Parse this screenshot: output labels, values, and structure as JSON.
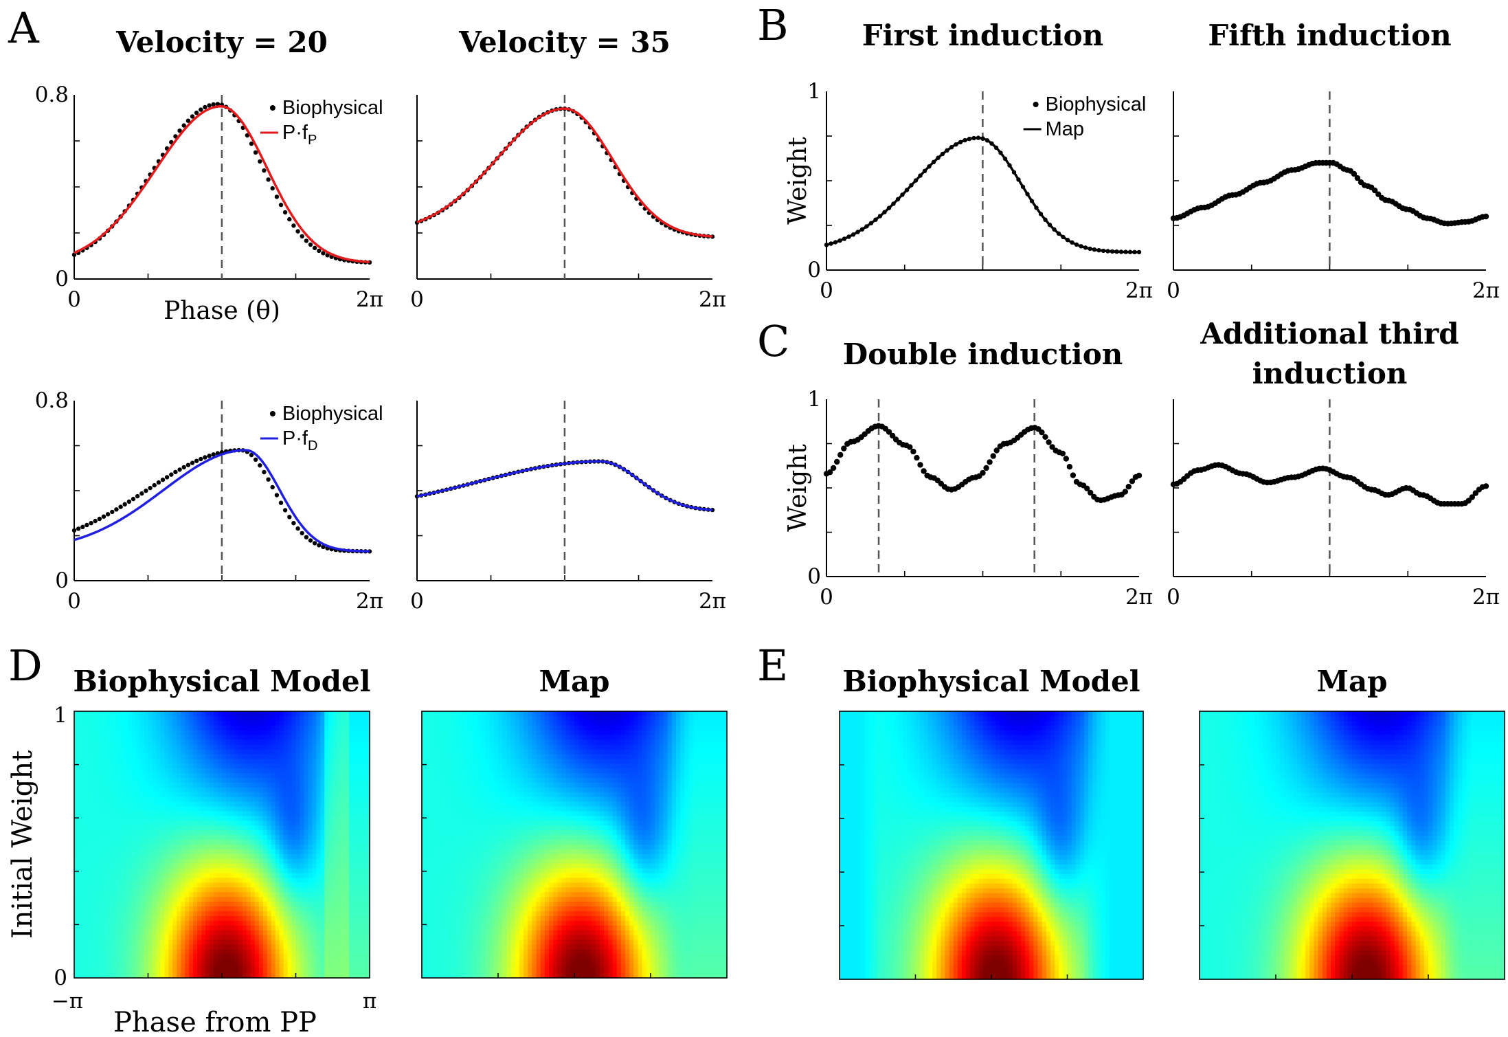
{
  "panel_labels": [
    "A",
    "B",
    "C",
    "D",
    "E"
  ],
  "colors": {
    "axis": "#000000",
    "biophysical": "#000000",
    "red_fit": "#e31a1c",
    "blue_fit": "#1f1fe0",
    "vline": "#555555"
  },
  "chart_data": [
    {
      "id": "A1",
      "type": "scatter",
      "title": "Velocity = 20",
      "xlabel": "Phase (θ)",
      "ylabel": "",
      "xticklabels": [
        "0",
        "2π"
      ],
      "yticklabels": [
        "0",
        "0.8"
      ],
      "xlim": [
        0,
        6.283
      ],
      "ylim": [
        0,
        0.8
      ],
      "vline": 3.14,
      "series": [
        {
          "name": "Biophysical",
          "style": "dots",
          "color": "#000000",
          "peak_x": 3.05,
          "peak_y": 0.76,
          "base": 0.05,
          "base_end": 0.07,
          "width_left": 1.35,
          "width_right": 0.95
        },
        {
          "name": "P·f",
          "name_sub": "P",
          "style": "line",
          "color": "#e31a1c",
          "peak_x": 3.12,
          "peak_y": 0.75,
          "base": 0.06,
          "base_end": 0.07,
          "width_left": 1.38,
          "width_right": 0.98
        }
      ]
    },
    {
      "id": "A2",
      "type": "scatter",
      "title": "Velocity = 35",
      "xticklabels": [
        "0",
        "2π"
      ],
      "yticklabels": [],
      "xlim": [
        0,
        6.283
      ],
      "ylim": [
        0,
        0.8
      ],
      "vline": 3.14,
      "series": [
        {
          "name": "",
          "style": "dots",
          "color": "#000000",
          "peak_x": 3.12,
          "peak_y": 0.74,
          "base": 0.2,
          "base_end": 0.18,
          "width_left": 1.4,
          "width_right": 1.0
        },
        {
          "name": "",
          "style": "line",
          "color": "#e31a1c",
          "peak_x": 3.14,
          "peak_y": 0.74,
          "base": 0.2,
          "base_end": 0.18,
          "width_left": 1.42,
          "width_right": 1.02
        }
      ]
    },
    {
      "id": "A3",
      "type": "scatter",
      "title": "",
      "xticklabels": [
        "0",
        "2π"
      ],
      "yticklabels": [
        "0",
        "0.8"
      ],
      "xlim": [
        0,
        6.283
      ],
      "ylim": [
        0,
        0.8
      ],
      "vline": 3.14,
      "series": [
        {
          "name": "Biophysical",
          "style": "dots",
          "color": "#000000",
          "peak_x": 3.55,
          "peak_y": 0.58,
          "base": 0.13,
          "base_end": 0.13,
          "width_left": 2.0,
          "width_right": 0.7
        },
        {
          "name": "P·f",
          "name_sub": "D",
          "style": "line",
          "color": "#1f1fe0",
          "peak_x": 3.65,
          "peak_y": 0.58,
          "base": 0.13,
          "base_end": 0.13,
          "width_left": 1.75,
          "width_right": 0.72
        }
      ]
    },
    {
      "id": "A4",
      "type": "scatter",
      "title": "",
      "xticklabels": [
        "0",
        "2π"
      ],
      "yticklabels": [],
      "xlim": [
        0,
        6.283
      ],
      "ylim": [
        0,
        0.8
      ],
      "vline": 3.14,
      "series": [
        {
          "name": "",
          "style": "dots",
          "color": "#000000",
          "peak_x": 3.9,
          "peak_y": 0.53,
          "base": 0.3,
          "base_end": 0.31,
          "width_left": 2.6,
          "width_right": 0.85
        },
        {
          "name": "",
          "style": "line",
          "color": "#1f1fe0",
          "peak_x": 3.9,
          "peak_y": 0.53,
          "base": 0.3,
          "base_end": 0.31,
          "width_left": 2.6,
          "width_right": 0.85
        }
      ]
    },
    {
      "id": "B1",
      "type": "scatter",
      "title": "First induction",
      "ylabel": "Weight",
      "xticklabels": [
        "0",
        "2π"
      ],
      "yticklabels": [
        "0",
        "1"
      ],
      "xlim": [
        0,
        6.283
      ],
      "ylim": [
        0,
        1
      ],
      "vline": 3.14,
      "series": [
        {
          "name": "Biophysical",
          "style": "dots",
          "color": "#000000",
          "peak_x": 3.05,
          "peak_y": 0.74,
          "base": 0.1,
          "base_end": 0.1,
          "width_left": 1.3,
          "width_right": 0.85
        },
        {
          "name": "Map",
          "style": "line",
          "color": "#000000",
          "peak_x": 3.05,
          "peak_y": 0.74,
          "base": 0.1,
          "base_end": 0.1,
          "width_left": 1.3,
          "width_right": 0.85
        }
      ]
    },
    {
      "id": "B2",
      "type": "scatter",
      "title": "Fifth induction",
      "xticklabels": [
        "0",
        "2π"
      ],
      "yticklabels": [],
      "xlim": [
        0,
        6.283
      ],
      "ylim": [
        0,
        1
      ],
      "vline": 3.14,
      "series": [
        {
          "name": "",
          "style": "dots",
          "color": "#000000",
          "points": [
            [
              0,
              0.29
            ],
            [
              0.6,
              0.35
            ],
            [
              1.2,
              0.42
            ],
            [
              1.8,
              0.49
            ],
            [
              2.4,
              0.56
            ],
            [
              2.9,
              0.6
            ],
            [
              3.2,
              0.6
            ],
            [
              3.5,
              0.56
            ],
            [
              3.9,
              0.47
            ],
            [
              4.3,
              0.39
            ],
            [
              4.7,
              0.34
            ],
            [
              5.1,
              0.29
            ],
            [
              5.5,
              0.26
            ],
            [
              5.9,
              0.27
            ],
            [
              6.283,
              0.3
            ]
          ]
        }
      ]
    },
    {
      "id": "C1",
      "type": "scatter",
      "title": "Double induction",
      "ylabel": "Weight",
      "xticklabels": [
        "0",
        "2π"
      ],
      "yticklabels": [
        "0",
        "1"
      ],
      "xlim": [
        0,
        6.283
      ],
      "ylim": [
        0,
        1
      ],
      "vlines": [
        1.05,
        4.18
      ],
      "series": [
        {
          "name": "",
          "style": "dots",
          "color": "#000000",
          "points": [
            [
              0,
              0.58
            ],
            [
              0.5,
              0.76
            ],
            [
              1.05,
              0.85
            ],
            [
              1.6,
              0.74
            ],
            [
              2.1,
              0.56
            ],
            [
              2.5,
              0.49
            ],
            [
              3.0,
              0.56
            ],
            [
              3.6,
              0.75
            ],
            [
              4.18,
              0.84
            ],
            [
              4.7,
              0.7
            ],
            [
              5.1,
              0.52
            ],
            [
              5.5,
              0.43
            ],
            [
              5.9,
              0.46
            ],
            [
              6.283,
              0.57
            ]
          ]
        }
      ]
    },
    {
      "id": "C2",
      "type": "scatter",
      "title": "Additional third induction",
      "xticklabels": [
        "0",
        "2π"
      ],
      "yticklabels": [],
      "xlim": [
        0,
        6.283
      ],
      "ylim": [
        0,
        1
      ],
      "vline": 3.14,
      "series": [
        {
          "name": "",
          "style": "dots",
          "color": "#000000",
          "points": [
            [
              0,
              0.52
            ],
            [
              0.5,
              0.6
            ],
            [
              0.9,
              0.63
            ],
            [
              1.4,
              0.58
            ],
            [
              1.9,
              0.53
            ],
            [
              2.4,
              0.56
            ],
            [
              3.0,
              0.61
            ],
            [
              3.5,
              0.56
            ],
            [
              4.0,
              0.49
            ],
            [
              4.3,
              0.46
            ],
            [
              4.7,
              0.5
            ],
            [
              5.0,
              0.46
            ],
            [
              5.4,
              0.41
            ],
            [
              5.8,
              0.41
            ],
            [
              6.283,
              0.51
            ]
          ]
        }
      ]
    },
    {
      "id": "D1",
      "type": "heatmap",
      "title": "Biophysical Model",
      "xlabel": "Phase from PP",
      "ylabel": "Initial Weight",
      "xticklabels": [
        "−π",
        "π"
      ],
      "yticklabels": [
        "0",
        "1"
      ],
      "xlim": [
        -3.1416,
        3.1416
      ],
      "ylim": [
        0,
        1
      ],
      "peak_x": 0.1,
      "peak_y": 0.0,
      "notch_x": 1.5,
      "notch_y": 0.52,
      "right_band": true,
      "colormap": "jet"
    },
    {
      "id": "D2",
      "type": "heatmap",
      "title": "Map",
      "xlim": [
        -3.1416,
        3.1416
      ],
      "ylim": [
        0,
        1
      ],
      "peak_x": 0.15,
      "peak_y": 0.0,
      "notch_x": 1.4,
      "notch_y": 0.5,
      "right_band": false,
      "colormap": "jet"
    },
    {
      "id": "E1",
      "type": "heatmap",
      "title": "Biophysical Model",
      "xlim": [
        -3.1416,
        3.1416
      ],
      "ylim": [
        0,
        1
      ],
      "peak_x": 0.1,
      "peak_y": 0.0,
      "notch_x": 1.4,
      "notch_y": 0.5,
      "right_band": false,
      "flat_edges": true,
      "colormap": "jet"
    },
    {
      "id": "E2",
      "type": "heatmap",
      "title": "Map",
      "xlim": [
        -3.1416,
        3.1416
      ],
      "ylim": [
        0,
        1
      ],
      "peak_x": 0.3,
      "peak_y": 0.0,
      "notch_x": 1.4,
      "notch_y": 0.5,
      "right_band": false,
      "colormap": "jet"
    }
  ]
}
